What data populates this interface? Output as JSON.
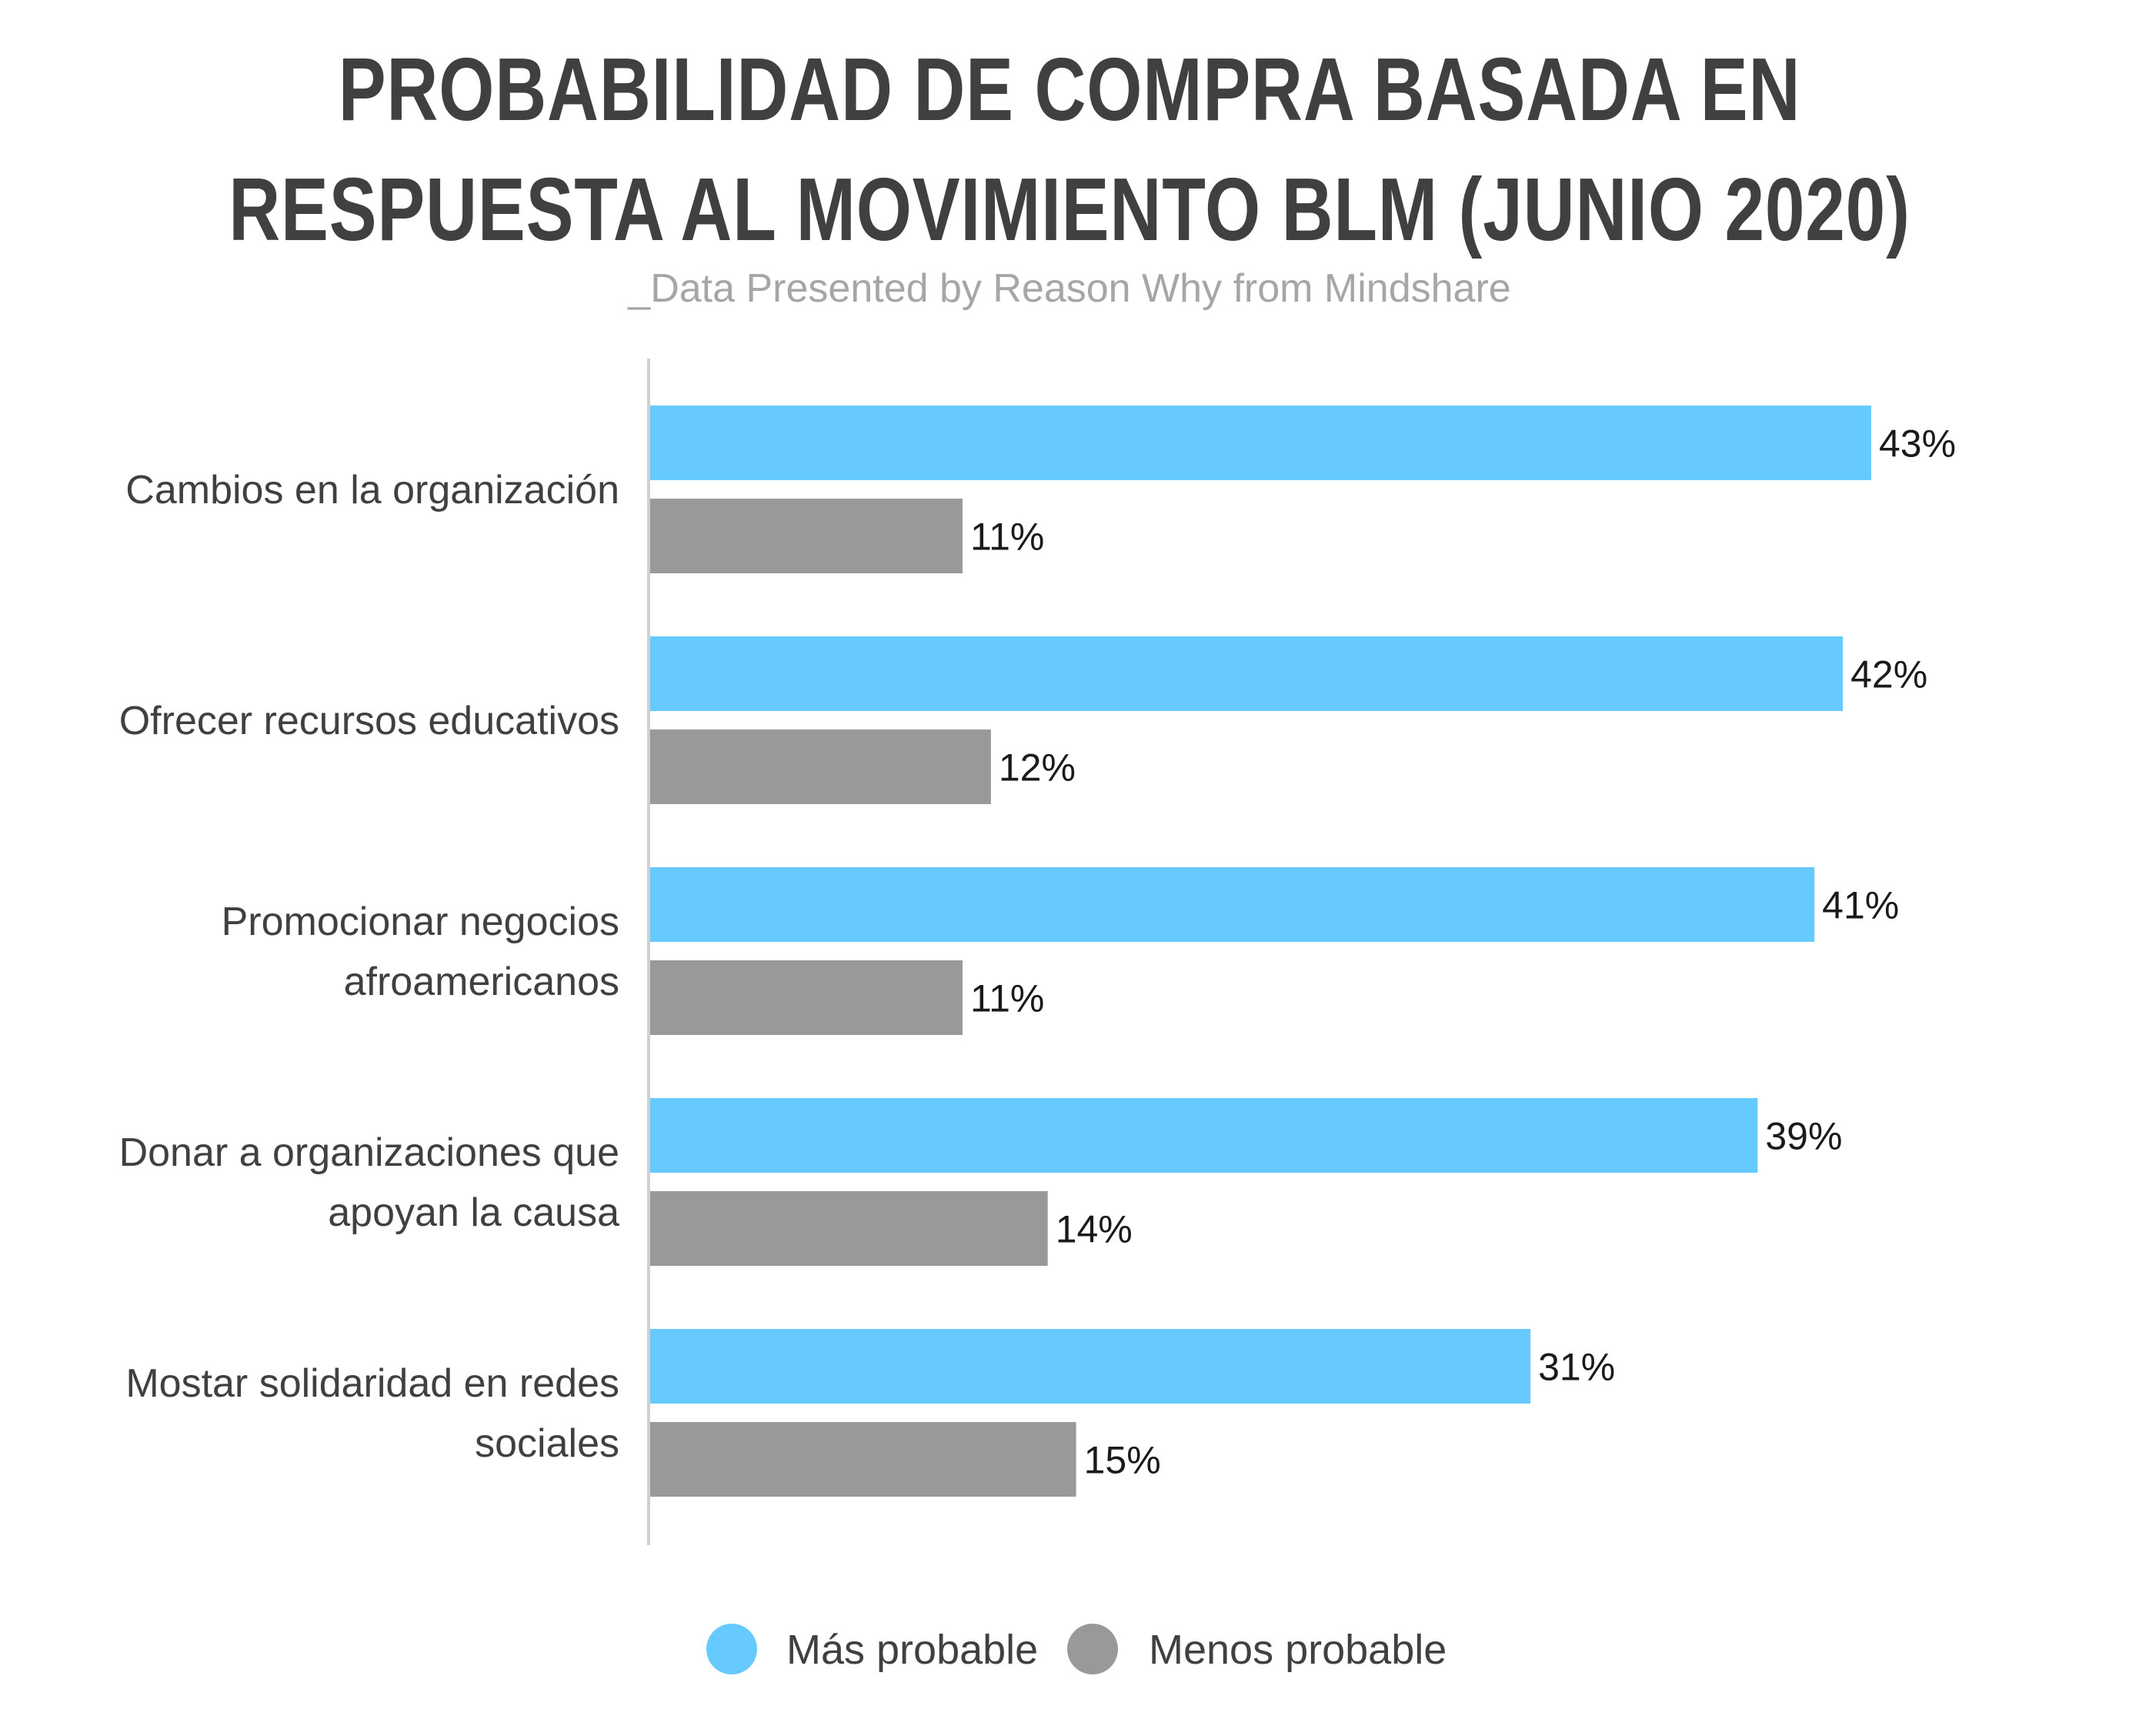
{
  "chart_data": {
    "type": "bar",
    "orientation": "horizontal",
    "title_lines": [
      "PROBABILIDAD DE COMPRA BASADA EN",
      "RESPUESTA AL MOVIMIENTO BLM (JUNIO 2020)"
    ],
    "subtitle": "_Data Presented by Reason Why from Mindshare",
    "categories": [
      [
        "Cambios en la organización"
      ],
      [
        "Ofrecer recursos educativos"
      ],
      [
        "Promocionar negocios",
        "afroamericanos"
      ],
      [
        "Donar a organizaciones que",
        "apoyan la causa"
      ],
      [
        "Mostar solidaridad en redes",
        "sociales"
      ]
    ],
    "series": [
      {
        "name": "Más probable",
        "color": "#66caff",
        "values": [
          43,
          42,
          41,
          39,
          31
        ],
        "labels": [
          "43%",
          "42%",
          "41%",
          "39%",
          "31%"
        ]
      },
      {
        "name": "Menos probable",
        "color": "#999999",
        "values": [
          11,
          12,
          11,
          14,
          15
        ],
        "labels": [
          "11%",
          "12%",
          "11%",
          "14%",
          "15%"
        ]
      }
    ],
    "xlim": [
      0,
      43
    ],
    "grid": false,
    "legend_position": "bottom"
  }
}
